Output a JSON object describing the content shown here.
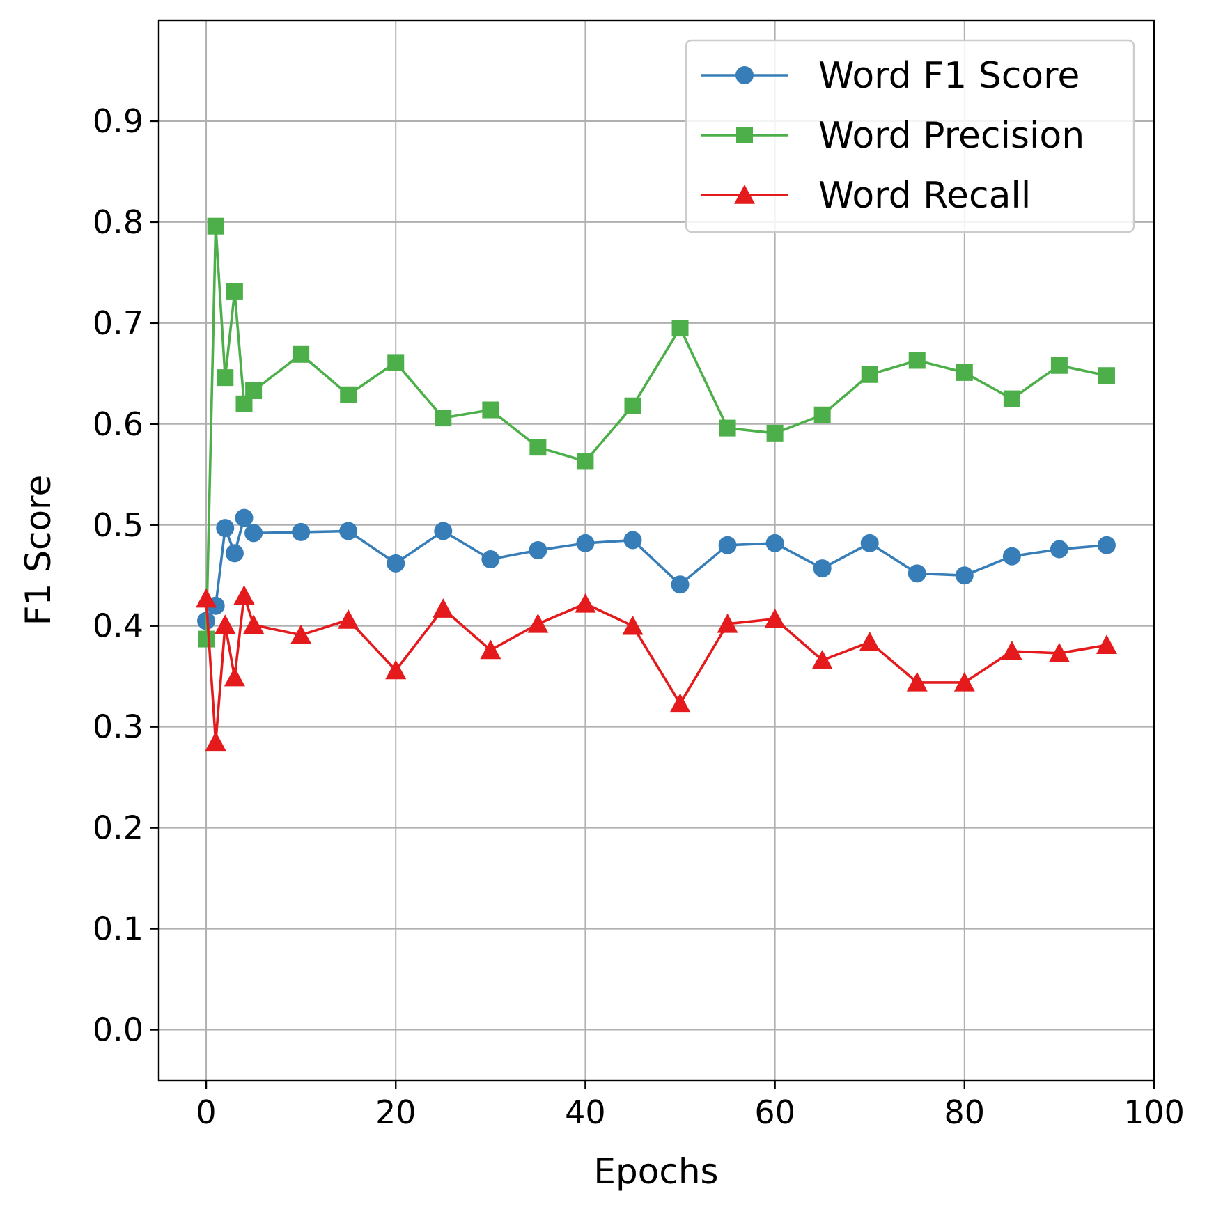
{
  "chart_data": {
    "type": "line",
    "xlabel": "Epochs",
    "ylabel": "F1 Score",
    "xlim": [
      -5,
      100
    ],
    "ylim": [
      -0.05,
      1.0
    ],
    "xticks": [
      0,
      20,
      40,
      60,
      80,
      100
    ],
    "yticks": [
      0.0,
      0.1,
      0.2,
      0.3,
      0.4,
      0.5,
      0.6,
      0.7,
      0.8,
      0.9
    ],
    "xtick_labels": [
      "0",
      "20",
      "40",
      "60",
      "80",
      "100"
    ],
    "ytick_labels": [
      "0.0",
      "0.1",
      "0.2",
      "0.3",
      "0.4",
      "0.5",
      "0.6",
      "0.7",
      "0.8",
      "0.9"
    ],
    "grid": true,
    "legend_position": "top-right",
    "x": [
      0,
      1,
      2,
      3,
      4,
      5,
      10,
      15,
      20,
      25,
      30,
      35,
      40,
      45,
      50,
      55,
      60,
      65,
      70,
      75,
      80,
      85,
      90,
      95
    ],
    "series": [
      {
        "name": "Word F1 Score",
        "color": "#377eb8",
        "marker": "circle",
        "values": [
          0.405,
          0.42,
          0.497,
          0.472,
          0.507,
          0.492,
          0.493,
          0.494,
          0.462,
          0.494,
          0.466,
          0.475,
          0.482,
          0.485,
          0.441,
          0.48,
          0.482,
          0.457,
          0.482,
          0.452,
          0.45,
          0.469,
          0.476,
          0.48
        ]
      },
      {
        "name": "Word Precision",
        "color": "#4daf4a",
        "marker": "square",
        "values": [
          0.387,
          0.796,
          0.646,
          0.731,
          0.62,
          0.633,
          0.669,
          0.629,
          0.661,
          0.606,
          0.614,
          0.577,
          0.563,
          0.618,
          0.695,
          0.596,
          0.591,
          0.609,
          0.649,
          0.663,
          0.651,
          0.625,
          0.658,
          0.648
        ]
      },
      {
        "name": "Word Recall",
        "color": "#e41a1c",
        "marker": "triangle",
        "values": [
          0.427,
          0.285,
          0.401,
          0.349,
          0.43,
          0.401,
          0.391,
          0.406,
          0.356,
          0.417,
          0.376,
          0.402,
          0.422,
          0.4,
          0.323,
          0.402,
          0.407,
          0.366,
          0.384,
          0.344,
          0.344,
          0.375,
          0.373,
          0.381
        ]
      }
    ]
  }
}
